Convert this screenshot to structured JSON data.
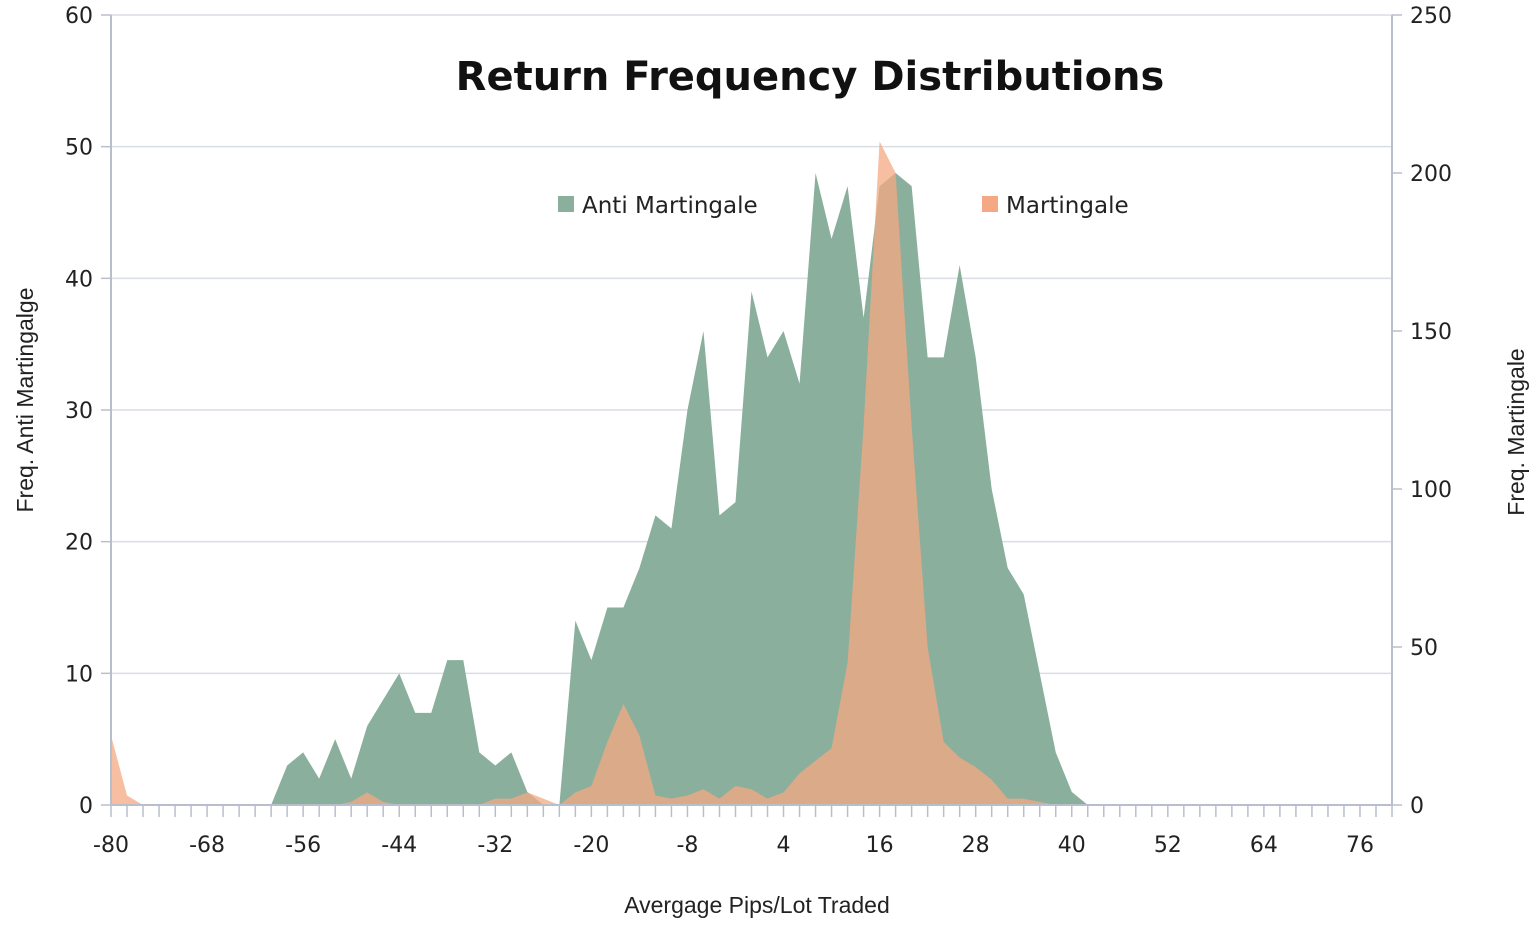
{
  "chart_data": {
    "type": "area",
    "title": "Return Frequency Distributions",
    "xlabel": "Avergage Pips/Lot Traded",
    "ylabel_left": "Freq. Anti Martingalge",
    "ylabel_right": "Freq. Martingale",
    "xlim": [
      -80,
      80
    ],
    "ylim_left": [
      0,
      60
    ],
    "ylim_right": [
      0,
      250
    ],
    "x_ticks": [
      "-80",
      "-68",
      "-56",
      "-44",
      "-32",
      "-20",
      "-8",
      "4",
      "16",
      "28",
      "40",
      "52",
      "64",
      "76"
    ],
    "y_ticks_left": [
      "0",
      "10",
      "20",
      "30",
      "40",
      "50",
      "60"
    ],
    "y_ticks_right": [
      "0",
      "50",
      "100",
      "150",
      "200",
      "250"
    ],
    "grid": true,
    "legend_position": "top",
    "series": [
      {
        "name": "Anti Martingale",
        "axis": "left",
        "color": "#8aaf9d",
        "x": [
          -80,
          -78,
          -76,
          -74,
          -72,
          -70,
          -68,
          -66,
          -64,
          -62,
          -60,
          -58,
          -56,
          -54,
          -52,
          -50,
          -48,
          -46,
          -44,
          -42,
          -40,
          -38,
          -36,
          -34,
          -32,
          -30,
          -28,
          -26,
          -24,
          -22,
          -20,
          -18,
          -16,
          -14,
          -12,
          -10,
          -8,
          -6,
          -4,
          -2,
          0,
          2,
          4,
          6,
          8,
          10,
          12,
          14,
          16,
          18,
          20,
          22,
          24,
          26,
          28,
          30,
          32,
          34,
          36,
          38,
          40,
          42,
          44,
          46,
          48,
          50,
          52,
          54,
          56,
          58,
          60,
          62,
          64,
          66,
          68,
          70,
          72,
          74,
          76,
          78,
          80
        ],
        "values": [
          0,
          0,
          0,
          0,
          0,
          0,
          0,
          0,
          0,
          0,
          0,
          3,
          4,
          2,
          5,
          2,
          6,
          8,
          10,
          7,
          7,
          11,
          11,
          4,
          3,
          4,
          1,
          0,
          0,
          14,
          11,
          15,
          15,
          18,
          22,
          21,
          30,
          36,
          22,
          23,
          39,
          34,
          36,
          32,
          48,
          43,
          47,
          37,
          47,
          48,
          47,
          34,
          34,
          41,
          34,
          24,
          18,
          16,
          10,
          4,
          1,
          0,
          0,
          0,
          0,
          0,
          0,
          0,
          0,
          0,
          0,
          0,
          0,
          0,
          0,
          0,
          0,
          0,
          0,
          0,
          0
        ]
      },
      {
        "name": "Martingale",
        "axis": "right",
        "color": "#f4a883",
        "x": [
          -80,
          -78,
          -76,
          -74,
          -72,
          -70,
          -68,
          -66,
          -64,
          -62,
          -60,
          -58,
          -56,
          -54,
          -52,
          -50,
          -48,
          -46,
          -44,
          -42,
          -40,
          -38,
          -36,
          -34,
          -32,
          -30,
          -28,
          -26,
          -24,
          -22,
          -20,
          -18,
          -16,
          -14,
          -12,
          -10,
          -8,
          -6,
          -4,
          -2,
          0,
          2,
          4,
          6,
          8,
          10,
          12,
          14,
          16,
          18,
          20,
          22,
          24,
          26,
          28,
          30,
          32,
          34,
          36,
          38,
          40,
          42,
          44,
          46,
          48,
          50,
          52,
          54,
          56,
          58,
          60,
          62,
          64,
          66,
          68,
          70,
          72,
          74,
          76,
          78,
          80
        ],
        "values": [
          22,
          3,
          0,
          0,
          0,
          0,
          0,
          0,
          0,
          0,
          0,
          0,
          0,
          0,
          0,
          1,
          4,
          1,
          0,
          0,
          0,
          0,
          0,
          0,
          2,
          2,
          4,
          2,
          0,
          4,
          6,
          20,
          32,
          22,
          3,
          2,
          3,
          5,
          2,
          6,
          5,
          2,
          4,
          10,
          14,
          18,
          45,
          120,
          210,
          200,
          120,
          50,
          20,
          15,
          12,
          8,
          2,
          2,
          1,
          0,
          0,
          0,
          0,
          0,
          0,
          0,
          0,
          0,
          0,
          0,
          0,
          0,
          0,
          0,
          0,
          0,
          0,
          0,
          0,
          0,
          0
        ]
      }
    ]
  }
}
